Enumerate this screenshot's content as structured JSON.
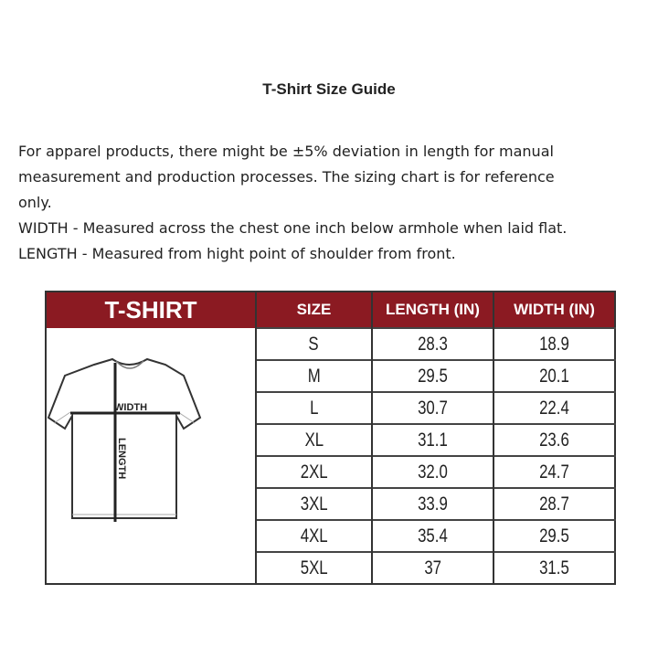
{
  "title": "T-Shirt Size Guide",
  "description": [
    "For apparel products, there might be ±5% deviation in length for manual",
    "measurement and production processes. The sizing chart is for reference",
    "only.",
    "WIDTH - Measured across the chest one inch below armhole when laid flat.",
    "LENGTH - Measured from hight point of shoulder from front."
  ],
  "table": {
    "header_color": "#8b1a22",
    "headers": [
      "T-SHIRT",
      "SIZE",
      "LENGTH (IN)",
      "WIDTH (IN)"
    ],
    "diagram_labels": {
      "width": "WIDTH",
      "length": "LENGTH"
    },
    "rows": [
      {
        "size": "S",
        "length": "28.3",
        "width": "18.9"
      },
      {
        "size": "M",
        "length": "29.5",
        "width": "20.1"
      },
      {
        "size": "L",
        "length": "30.7",
        "width": "22.4"
      },
      {
        "size": "XL",
        "length": "31.1",
        "width": "23.6"
      },
      {
        "size": "2XL",
        "length": "32.0",
        "width": "24.7"
      },
      {
        "size": "3XL",
        "length": "33.9",
        "width": "28.7"
      },
      {
        "size": "4XL",
        "length": "35.4",
        "width": "29.5"
      },
      {
        "size": "5XL",
        "length": "37",
        "width": "31.5"
      }
    ]
  }
}
